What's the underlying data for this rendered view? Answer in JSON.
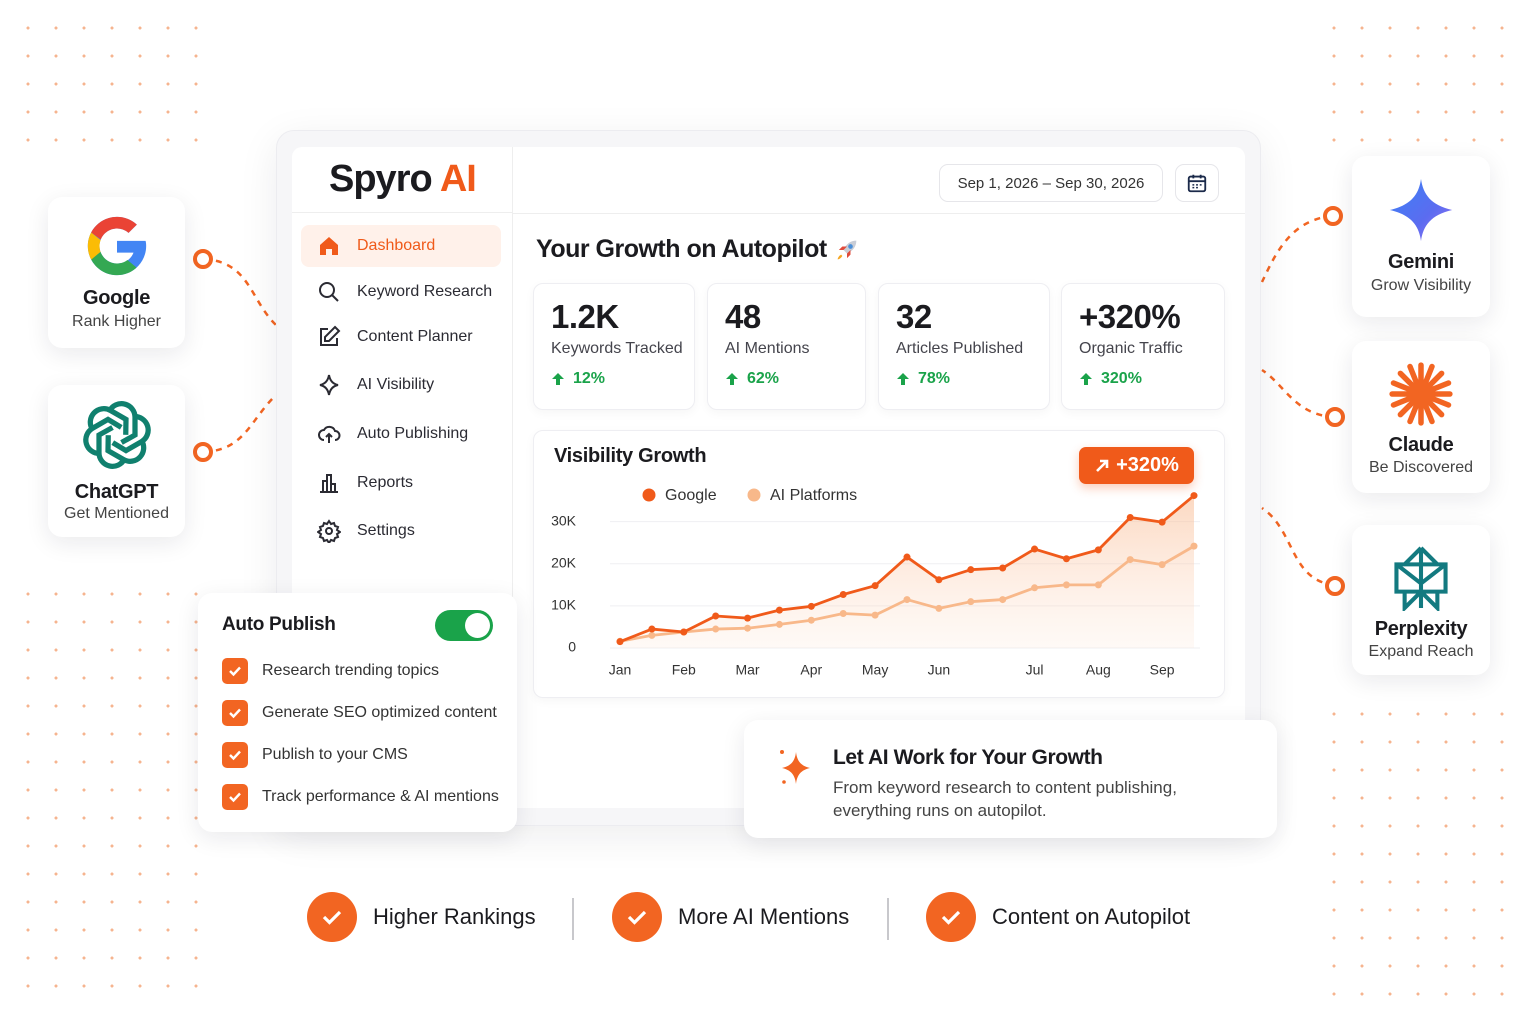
{
  "brand": {
    "name": "Spyro",
    "accent": "AI"
  },
  "header": {
    "date_range": "Sep 1, 2026 – Sep 30, 2026"
  },
  "nav": [
    "Dashboard",
    "Keyword Research",
    "Content Planner",
    "AI Visibility",
    "Auto Publishing",
    "Reports",
    "Settings"
  ],
  "heading": "Your Growth on Autopilot",
  "stats": [
    {
      "value": "1.2K",
      "label": "Keywords Tracked",
      "change": "12%"
    },
    {
      "value": "48",
      "label": "AI Mentions",
      "change": "62%"
    },
    {
      "value": "32",
      "label": "Articles Published",
      "change": "78%"
    },
    {
      "value": "+320%",
      "label": "Organic Traffic",
      "change": "320%"
    }
  ],
  "chart_data": {
    "type": "line",
    "title": "Visibility Growth",
    "annotation": "+320%",
    "categories": [
      "Jan",
      null,
      "Feb",
      null,
      "Mar",
      null,
      "Apr",
      null,
      "May",
      null,
      "Jun",
      null,
      null,
      "Jul",
      null,
      "Aug",
      null,
      "Sep",
      null
    ],
    "series": [
      {
        "name": "Google",
        "color": "#f05a1a",
        "values": [
          1500,
          4500,
          3800,
          7600,
          7100,
          9000,
          9900,
          12700,
          14800,
          21600,
          16200,
          18600,
          19000,
          23500,
          21200,
          23300,
          31000,
          29900,
          36200
        ]
      },
      {
        "name": "AI Platforms",
        "color": "#f8b88a",
        "values": [
          1600,
          3000,
          3800,
          4500,
          4700,
          5600,
          6600,
          8200,
          7800,
          11500,
          9400,
          11000,
          11500,
          14300,
          15000,
          15000,
          21000,
          19800,
          24200
        ]
      }
    ],
    "ylim": [
      0,
      38000
    ],
    "yticks": [
      0,
      {
        "value": 10000,
        "label": "10K"
      },
      {
        "value": 20000,
        "label": "20K"
      },
      {
        "value": 30000,
        "label": "30K"
      }
    ],
    "grid": true
  },
  "integrations": {
    "left": [
      {
        "name": "Google",
        "tagline": "Rank Higher"
      },
      {
        "name": "ChatGPT",
        "tagline": "Get Mentioned"
      }
    ],
    "right": [
      {
        "name": "Gemini",
        "tagline": "Grow Visibility"
      },
      {
        "name": "Claude",
        "tagline": "Be Discovered"
      },
      {
        "name": "Perplexity",
        "tagline": "Expand Reach"
      }
    ]
  },
  "auto_publish": {
    "title": "Auto Publish",
    "enabled": true,
    "items": [
      "Research trending topics",
      "Generate SEO optimized content",
      "Publish to your CMS",
      "Track performance & AI mentions"
    ]
  },
  "callout": {
    "title": "Let AI Work for Your Growth",
    "text": "From keyword research to content publishing, everything runs on autopilot."
  },
  "benefits": [
    "Higher Rankings",
    "More AI Mentions",
    "Content on Autopilot"
  ]
}
